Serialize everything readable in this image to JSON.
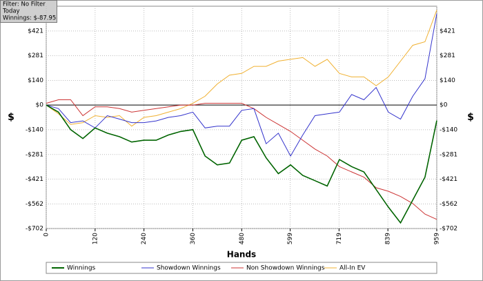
{
  "chart_data": {
    "type": "line",
    "annotations": [
      "Filter: No Filter",
      "Today",
      "Winnings: $-87.95"
    ],
    "xlabel": "Hands",
    "ylabel": "$",
    "x": [
      0,
      30,
      60,
      90,
      120,
      150,
      180,
      210,
      240,
      270,
      300,
      330,
      360,
      390,
      420,
      450,
      480,
      510,
      540,
      570,
      600,
      630,
      660,
      690,
      720,
      750,
      780,
      810,
      840,
      870,
      900,
      930,
      959
    ],
    "series": [
      {
        "name": "Winnings",
        "color": "#006400",
        "values": [
          0,
          -40,
          -140,
          -190,
          -130,
          -160,
          -180,
          -210,
          -200,
          -200,
          -170,
          -150,
          -140,
          -290,
          -340,
          -330,
          -200,
          -180,
          -300,
          -390,
          -340,
          -400,
          -430,
          -460,
          -310,
          -350,
          -380,
          -480,
          -580,
          -670,
          -540,
          -410,
          -88
        ]
      },
      {
        "name": "Showdown Winnings",
        "color": "#3333cc",
        "values": [
          0,
          -20,
          -100,
          -90,
          -130,
          -60,
          -80,
          -100,
          -100,
          -90,
          -70,
          -60,
          -40,
          -130,
          -120,
          -120,
          -30,
          -20,
          -220,
          -160,
          -290,
          -170,
          -60,
          -50,
          -40,
          60,
          30,
          100,
          -40,
          -80,
          50,
          150,
          520
        ]
      },
      {
        "name": "Non Showdown Winnings",
        "color": "#cc3333",
        "values": [
          10,
          30,
          30,
          -60,
          -10,
          -10,
          -20,
          -40,
          -30,
          -20,
          -10,
          0,
          0,
          10,
          10,
          10,
          10,
          -20,
          -70,
          -110,
          -150,
          -200,
          -250,
          -290,
          -350,
          -380,
          -410,
          -470,
          -490,
          -520,
          -560,
          -620,
          -650
        ]
      },
      {
        "name": "All-In EV",
        "color": "#f0b030",
        "values": [
          0,
          -50,
          -110,
          -100,
          -60,
          -70,
          -60,
          -120,
          -70,
          -60,
          -40,
          -20,
          10,
          50,
          120,
          170,
          180,
          220,
          220,
          250,
          260,
          270,
          220,
          260,
          180,
          160,
          160,
          110,
          160,
          250,
          340,
          360,
          540
        ]
      }
    ],
    "xlim": [
      0,
      959
    ],
    "xticks": [
      0,
      120,
      240,
      360,
      480,
      599,
      719,
      839,
      959
    ],
    "ylim": [
      -702,
      562
    ],
    "yticks": [
      {
        "value": 421,
        "label": "$421"
      },
      {
        "value": 281,
        "label": "$281"
      },
      {
        "value": 140,
        "label": "$140"
      },
      {
        "value": 0,
        "label": "$0"
      },
      {
        "value": -140,
        "label": "-$140"
      },
      {
        "value": -281,
        "label": "-$281"
      },
      {
        "value": -421,
        "label": "-$421"
      },
      {
        "value": -562,
        "label": "-$562"
      },
      {
        "value": -702,
        "label": "-$702"
      }
    ],
    "grid": true
  }
}
